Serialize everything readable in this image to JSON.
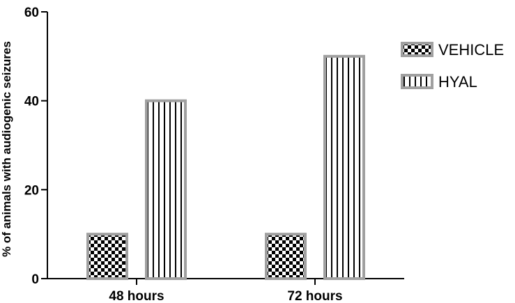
{
  "chart_data": {
    "type": "bar",
    "title": "",
    "xlabel": "",
    "ylabel": "% of animals with audiogenic seizures",
    "categories": [
      "48 hours",
      "72 hours"
    ],
    "series": [
      {
        "name": "VEHICLE",
        "values": [
          10,
          10
        ],
        "pattern": "checkerboard"
      },
      {
        "name": "HYAL",
        "values": [
          40,
          50
        ],
        "pattern": "vertical-stripes"
      }
    ],
    "ylim": [
      0,
      60
    ],
    "yticks": [
      0,
      20,
      40,
      60
    ],
    "grid": false,
    "legend_position": "top-right",
    "colors": {
      "bar_border": "#a0a0a0",
      "fill_dark": "#000000",
      "fill_light": "#ffffff",
      "axis": "#000000"
    }
  }
}
